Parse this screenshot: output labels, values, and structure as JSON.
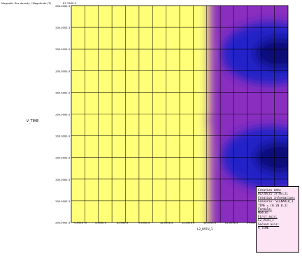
{
  "chart_data": {
    "type": "heatmap",
    "title": "Magnetic flux density / Magnitude (T)",
    "title_tick": "87.350E-3",
    "xlabel": "L2_PATH_1",
    "ylabel": "V_TIME",
    "x_ticks": [
      "-0.000E+0",
      "3.000E-3",
      "6.000E-3",
      "9.000E-3",
      "12.000E-3",
      "15.000E-3",
      "18.000E-3",
      "21.000E-3",
      "24.000E-3",
      "27.000E-3"
    ],
    "y_ticks": [
      "200.000E-3",
      "200.000E-3",
      "200.000E-3",
      "200.000E-3",
      "200.000E-3",
      "200.000E-3",
      "200.000E-3",
      "200.000E-3",
      "200.000E-3",
      "200.000E-3"
    ],
    "colormap": [
      "#000a5a",
      "#1a1ab4",
      "#5a3ce6",
      "#a03cd2",
      "#d2508c",
      "#f07850",
      "#ffaa28",
      "#ffd714",
      "#ffff64"
    ],
    "hotspots": [
      {
        "x_range": [
          0.0,
          0.56
        ],
        "y_range": [
          0.52,
          1.0
        ],
        "level": "high"
      },
      {
        "x_range": [
          0.0,
          0.56
        ],
        "y_range": [
          0.0,
          0.42
        ],
        "level": "high"
      }
    ],
    "grid": true
  },
  "info": {
    "lines": [
      {
        "text": "Creation date",
        "underline": true
      },
      {
        "text": "01/20/21 17:04:21",
        "underline": false
      },
      {
        "text": " Creation informations",
        "underline": true
      },
      {
        "text": " Scenario: SCENARIO_1",
        "underline": false
      },
      {
        "text": " TIME =  [0.20.0.2]",
        "underline": false
      },
      {
        "text": "Formula:",
        "underline": true
      },
      {
        "text": "Mod(B)",
        "underline": false
      },
      {
        "text": "First axis:",
        "underline": true
      },
      {
        "text": "L2_PATH_1",
        "underline": false
      },
      {
        "text": "Second axis:",
        "underline": true
      },
      {
        "text": "V_TIME",
        "underline": false
      }
    ]
  }
}
